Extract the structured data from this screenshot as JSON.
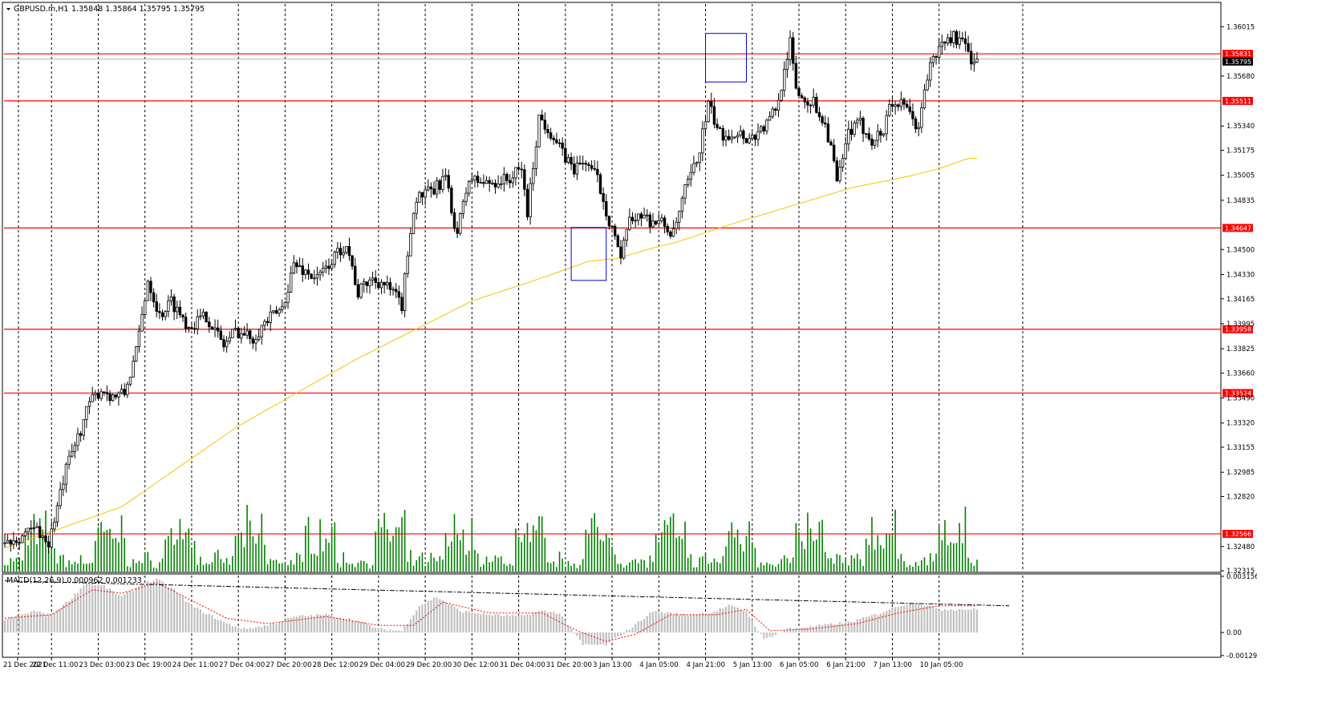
{
  "window": {
    "symbol_title": "GBPUSD.m,H1",
    "ohlc_text": "1.35848 1.35864 1.35795 1.35795"
  },
  "chart_data": [
    {
      "type": "candlestick",
      "title": "GBPUSD.m,H1 1.35848 1.35864 1.35795 1.35795",
      "ylim": [
        1.3231,
        1.3617
      ],
      "y_ticks": [
        "1.36015",
        "1.35680",
        "1.35340",
        "1.35175",
        "1.35005",
        "1.34835",
        "1.34500",
        "1.34330",
        "1.34165",
        "1.33995",
        "1.33825",
        "1.33660",
        "1.33490",
        "1.33320",
        "1.33155",
        "1.32985",
        "1.32820",
        "1.32480",
        "1.32315"
      ],
      "x_ticks": [
        "21 Dec 2021",
        "22 Dec 11:00",
        "23 Dec 03:00",
        "23 Dec 19:00",
        "24 Dec 11:00",
        "27 Dec 04:00",
        "27 Dec 20:00",
        "28 Dec 12:00",
        "29 Dec 04:00",
        "29 Dec 20:00",
        "30 Dec 12:00",
        "31 Dec 04:00",
        "31 Dec 20:00",
        "3 Jan 13:00",
        "4 Jan 05:00",
        "4 Jan 21:00",
        "5 Jan 13:00",
        "6 Jan 05:00",
        "6 Jan 21:00",
        "7 Jan 13:00",
        "10 Jan 05:00"
      ],
      "price_path": [
        [
          0,
          1.325
        ],
        [
          6,
          1.3255
        ],
        [
          12,
          1.326
        ],
        [
          16,
          1.325
        ],
        [
          22,
          1.33
        ],
        [
          30,
          1.3345
        ],
        [
          34,
          1.3355
        ],
        [
          38,
          1.335
        ],
        [
          42,
          1.3352
        ],
        [
          46,
          1.338
        ],
        [
          50,
          1.343
        ],
        [
          54,
          1.3405
        ],
        [
          58,
          1.3415
        ],
        [
          64,
          1.3398
        ],
        [
          70,
          1.3405
        ],
        [
          76,
          1.3385
        ],
        [
          80,
          1.3395
        ],
        [
          86,
          1.339
        ],
        [
          90,
          1.34
        ],
        [
          96,
          1.341
        ],
        [
          100,
          1.344
        ],
        [
          104,
          1.3435
        ],
        [
          108,
          1.343
        ],
        [
          112,
          1.344
        ],
        [
          118,
          1.3455
        ],
        [
          122,
          1.342
        ],
        [
          126,
          1.343
        ],
        [
          130,
          1.3428
        ],
        [
          134,
          1.342
        ],
        [
          137,
          1.3412
        ],
        [
          140,
          1.3465
        ],
        [
          142,
          1.3485
        ],
        [
          148,
          1.349
        ],
        [
          152,
          1.35
        ],
        [
          154,
          1.3475
        ],
        [
          156,
          1.3462
        ],
        [
          160,
          1.3498
        ],
        [
          166,
          1.3495
        ],
        [
          174,
          1.3498
        ],
        [
          178,
          1.3505
        ],
        [
          180,
          1.3475
        ],
        [
          184,
          1.354
        ],
        [
          188,
          1.353
        ],
        [
          192,
          1.3515
        ],
        [
          196,
          1.3505
        ],
        [
          200,
          1.351
        ],
        [
          204,
          1.3498
        ],
        [
          208,
          1.347
        ],
        [
          210,
          1.346
        ],
        [
          212,
          1.344
        ],
        [
          214,
          1.3465
        ],
        [
          218,
          1.3475
        ],
        [
          222,
          1.347
        ],
        [
          226,
          1.3468
        ],
        [
          230,
          1.346
        ],
        [
          234,
          1.349
        ],
        [
          238,
          1.351
        ],
        [
          242,
          1.3548
        ],
        [
          246,
          1.3528
        ],
        [
          252,
          1.353
        ],
        [
          256,
          1.3525
        ],
        [
          262,
          1.3535
        ],
        [
          266,
          1.355
        ],
        [
          268,
          1.3575
        ],
        [
          270,
          1.359
        ],
        [
          272,
          1.356
        ],
        [
          274,
          1.3553
        ],
        [
          278,
          1.355
        ],
        [
          282,
          1.3535
        ],
        [
          284,
          1.352
        ],
        [
          286,
          1.3495
        ],
        [
          288,
          1.351
        ],
        [
          290,
          1.353
        ],
        [
          294,
          1.3535
        ],
        [
          298,
          1.3525
        ],
        [
          302,
          1.353
        ],
        [
          304,
          1.355
        ],
        [
          308,
          1.3548
        ],
        [
          312,
          1.354
        ],
        [
          314,
          1.353
        ],
        [
          316,
          1.356
        ],
        [
          318,
          1.3575
        ],
        [
          322,
          1.359
        ],
        [
          326,
          1.3595
        ],
        [
          330,
          1.3588
        ],
        [
          332,
          1.358
        ]
      ],
      "price_range_low": 1.3243,
      "price_range_high": 1.3601,
      "current_price": 1.35795,
      "series": [
        {
          "name": "Moving Average",
          "color": "#f5c400",
          "x": [
            0,
            40,
            80,
            120,
            140,
            160,
            180,
            200,
            210,
            220,
            230,
            250,
            270,
            290,
            310,
            320,
            330
          ],
          "values": [
            1.3247,
            1.3275,
            1.333,
            1.3375,
            1.3395,
            1.3415,
            1.3428,
            1.3442,
            1.3444,
            1.345,
            1.3455,
            1.3468,
            1.348,
            1.3492,
            1.35,
            1.3505,
            1.3512
          ]
        }
      ],
      "horizontal_levels": [
        {
          "price": 1.35831,
          "label": "1.35831",
          "color": "#ff0000"
        },
        {
          "price": 1.35511,
          "label": "1.35511",
          "color": "#ff0000"
        },
        {
          "price": 1.34647,
          "label": "1.34647",
          "color": "#ff0000"
        },
        {
          "price": 1.33958,
          "label": "1.33958",
          "color": "#ff0000"
        },
        {
          "price": 1.33524,
          "label": "1.33524",
          "color": "#ff0000"
        },
        {
          "price": 1.32566,
          "label": "1.32566",
          "color": "#ff0000"
        }
      ],
      "current_price_label": "1.35795",
      "highlight_boxes": [
        {
          "x_from": 194,
          "x_to": 206,
          "price_top": 1.3465,
          "price_bottom": 1.3429,
          "color": "#0000cc"
        },
        {
          "x_from": 240,
          "x_to": 254,
          "price_top": 1.3597,
          "price_bottom": 1.3564,
          "color": "#0000cc"
        }
      ],
      "volume_histogram": {
        "color": "#008000",
        "type": "bar"
      },
      "grid": true,
      "bullish_color": "#ffffff",
      "bearish_color": "#000000"
    },
    {
      "type": "bar",
      "title": "MACD(12,26,9) 0.000962 0.001233",
      "ylim": [
        -0.0013,
        0.0032
      ],
      "y_ticks": [
        "0.003156",
        "0.00",
        "-0.001293"
      ],
      "macd_histogram_color": "#c0c0c0",
      "signal_line_color": "#ff0000",
      "histogram_path": [
        [
          0,
          0.0007
        ],
        [
          10,
          0.0012
        ],
        [
          16,
          0.001
        ],
        [
          22,
          0.0018
        ],
        [
          28,
          0.0028
        ],
        [
          34,
          0.0026
        ],
        [
          40,
          0.002
        ],
        [
          46,
          0.0026
        ],
        [
          52,
          0.003
        ],
        [
          58,
          0.0024
        ],
        [
          64,
          0.0015
        ],
        [
          70,
          0.001
        ],
        [
          76,
          0.0005
        ],
        [
          82,
          0.0002
        ],
        [
          90,
          0.0004
        ],
        [
          100,
          0.0009
        ],
        [
          110,
          0.001
        ],
        [
          120,
          0.0007
        ],
        [
          128,
          0.0002
        ],
        [
          136,
          0.0001
        ],
        [
          142,
          0.0015
        ],
        [
          148,
          0.002
        ],
        [
          156,
          0.0012
        ],
        [
          166,
          0.001
        ],
        [
          176,
          0.0009
        ],
        [
          184,
          0.0012
        ],
        [
          190,
          0.0011
        ],
        [
          198,
          -0.0007
        ],
        [
          206,
          -0.0007
        ],
        [
          214,
          0.0002
        ],
        [
          222,
          0.0012
        ],
        [
          232,
          0.001
        ],
        [
          242,
          0.0011
        ],
        [
          248,
          0.0015
        ],
        [
          254,
          0.0012
        ],
        [
          260,
          -0.0004
        ],
        [
          268,
          0.0002
        ],
        [
          280,
          0.0004
        ],
        [
          290,
          0.0006
        ],
        [
          300,
          0.0011
        ],
        [
          306,
          0.0015
        ],
        [
          312,
          0.0017
        ],
        [
          320,
          0.0013
        ]
      ],
      "signal_path": [
        [
          0,
          0.0008
        ],
        [
          16,
          0.001
        ],
        [
          30,
          0.0024
        ],
        [
          40,
          0.0022
        ],
        [
          52,
          0.0028
        ],
        [
          64,
          0.0018
        ],
        [
          76,
          0.0008
        ],
        [
          90,
          0.0005
        ],
        [
          110,
          0.0009
        ],
        [
          128,
          0.0004
        ],
        [
          140,
          0.0004
        ],
        [
          150,
          0.0017
        ],
        [
          166,
          0.0011
        ],
        [
          184,
          0.0011
        ],
        [
          196,
          0.0001
        ],
        [
          206,
          -0.0005
        ],
        [
          216,
          -0.0001
        ],
        [
          228,
          0.001
        ],
        [
          244,
          0.001
        ],
        [
          254,
          0.0013
        ],
        [
          262,
          0.0001
        ],
        [
          276,
          0.0002
        ],
        [
          292,
          0.0005
        ],
        [
          306,
          0.0011
        ],
        [
          320,
          0.0015
        ]
      ],
      "dashed_line": {
        "from": 0.0029,
        "to": 0.0015,
        "color": "#000000"
      }
    }
  ]
}
